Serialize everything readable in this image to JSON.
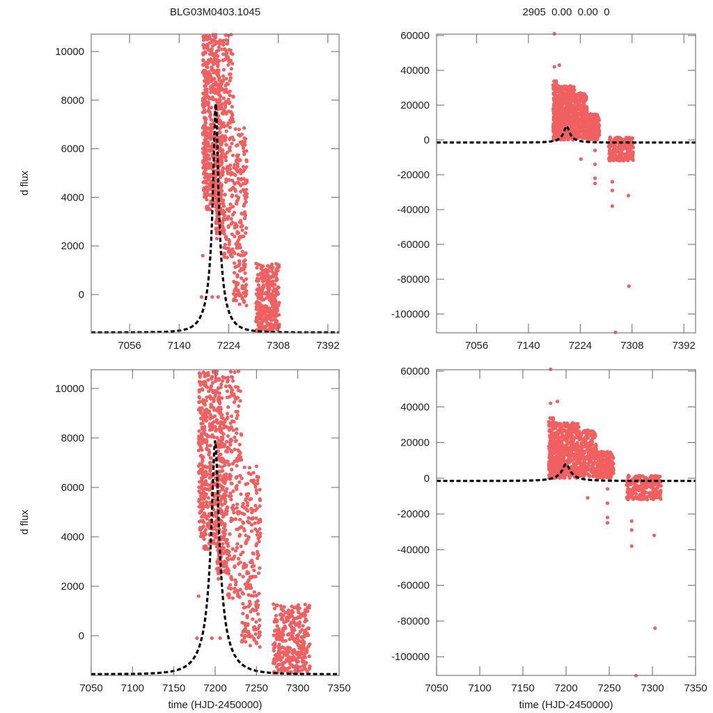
{
  "figure": {
    "title_left": "BLG03M0403.1045",
    "title_right": "2905  0.00  0.00  0",
    "point_color": "#f06060",
    "model_color": "#000000"
  },
  "chart_data": [
    {
      "id": "top-left",
      "type": "scatter",
      "title": "BLG03M0403.1045",
      "xlabel": "",
      "ylabel": "d flux",
      "xlim": [
        6991,
        7411
      ],
      "ylim": [
        -1576,
        10716
      ],
      "xticks": [
        7056,
        7140,
        7224,
        7308,
        7392
      ],
      "xtick_labels": [
        "7056",
        "7140",
        "7224",
        "7308",
        "7392"
      ],
      "yticks": [
        0,
        2000,
        4000,
        6000,
        8000,
        10000
      ],
      "ytick_labels": [
        "0",
        "2000",
        "4000",
        "6000",
        "8000",
        "10000"
      ],
      "model": {
        "label": "model",
        "t0": 7202,
        "peak": 7900,
        "baseline": -1560,
        "u0": 0.15,
        "tE": 28
      },
      "clusters": [
        {
          "x_range": [
            7180,
            7186
          ],
          "y_range": [
            4000,
            10700
          ],
          "n": 130
        },
        {
          "x_range": [
            7186,
            7202
          ],
          "y_range": [
            3500,
            10700
          ],
          "n": 260
        },
        {
          "x_range": [
            7202,
            7215
          ],
          "y_range": [
            2500,
            10500
          ],
          "n": 260
        },
        {
          "x_range": [
            7215,
            7232
          ],
          "y_range": [
            1500,
            10700
          ],
          "n": 170
        },
        {
          "x_range": [
            7232,
            7255
          ],
          "y_range": [
            -500,
            7000
          ],
          "n": 200
        },
        {
          "x_range": [
            7270,
            7310
          ],
          "y_range": [
            -1500,
            1300
          ],
          "n": 320
        }
      ],
      "outliers": [
        [
          7178,
          -100
        ],
        [
          7196,
          -100
        ],
        [
          7206,
          -100
        ],
        [
          7180,
          1600
        ],
        [
          7204,
          2300
        ],
        [
          7210,
          3500
        ],
        [
          7190,
          5300
        ]
      ]
    },
    {
      "id": "top-right",
      "type": "scatter",
      "title": "2905  0.00  0.00  0",
      "xlabel": "",
      "ylabel": "",
      "xlim": [
        6991,
        7411
      ],
      "ylim": [
        -110800,
        60800
      ],
      "xticks": [
        7056,
        7140,
        7224,
        7308,
        7392
      ],
      "xtick_labels": [
        "7056",
        "7140",
        "7224",
        "7308",
        "7392"
      ],
      "yticks": [
        -100000,
        -80000,
        -60000,
        -40000,
        -20000,
        0,
        20000,
        40000,
        60000
      ],
      "ytick_labels": [
        "-100000",
        "-80000",
        "-60000",
        "-40000",
        "-20000",
        "0",
        "20000",
        "40000",
        "60000"
      ],
      "model": {
        "label": "model",
        "t0": 7202,
        "peak": 8000,
        "baseline": -1500,
        "u0": 0.15,
        "tE": 28
      },
      "clusters": [
        {
          "x_range": [
            7180,
            7186
          ],
          "y_range": [
            0,
            34000
          ],
          "n": 150
        },
        {
          "x_range": [
            7186,
            7215
          ],
          "y_range": [
            0,
            31000
          ],
          "n": 450
        },
        {
          "x_range": [
            7215,
            7235
          ],
          "y_range": [
            1000,
            27000
          ],
          "n": 220
        },
        {
          "x_range": [
            7235,
            7255
          ],
          "y_range": [
            0,
            15000
          ],
          "n": 180
        },
        {
          "x_range": [
            7270,
            7310
          ],
          "y_range": [
            -12000,
            1500
          ],
          "n": 260
        }
      ],
      "outliers": [
        [
          7182,
          61000
        ],
        [
          7182,
          42000
        ],
        [
          7190,
          43000
        ],
        [
          7225,
          -11000
        ],
        [
          7248,
          -6000
        ],
        [
          7248,
          -14000
        ],
        [
          7248,
          -22000
        ],
        [
          7248,
          -25000
        ],
        [
          7276,
          -24000
        ],
        [
          7276,
          -29000
        ],
        [
          7276,
          -38000
        ],
        [
          7302,
          -32000
        ],
        [
          7303,
          -84000
        ],
        [
          7281,
          -110500
        ]
      ]
    },
    {
      "id": "bottom-left",
      "type": "scatter",
      "title": "",
      "xlabel": "time (HJD-2450000)",
      "ylabel": "d flux",
      "xlim": [
        7050,
        7350
      ],
      "ylim": [
        -1606,
        10760
      ],
      "xticks": [
        7050,
        7100,
        7150,
        7200,
        7250,
        7300,
        7350
      ],
      "xtick_labels": [
        "7050",
        "7100",
        "7150",
        "7200",
        "7250",
        "7300",
        "7350"
      ],
      "yticks": [
        0,
        2000,
        4000,
        6000,
        8000,
        10000
      ],
      "ytick_labels": [
        "0",
        "2000",
        "4000",
        "6000",
        "8000",
        "10000"
      ],
      "model": {
        "label": "model",
        "t0": 7200,
        "peak": 7900,
        "baseline": -1560,
        "u0": 0.15,
        "tE": 28
      },
      "clusters": [
        {
          "x_range": [
            7180,
            7186
          ],
          "y_range": [
            4000,
            10700
          ],
          "n": 130
        },
        {
          "x_range": [
            7186,
            7202
          ],
          "y_range": [
            3500,
            10700
          ],
          "n": 260
        },
        {
          "x_range": [
            7202,
            7215
          ],
          "y_range": [
            2500,
            10500
          ],
          "n": 260
        },
        {
          "x_range": [
            7215,
            7232
          ],
          "y_range": [
            1500,
            10700
          ],
          "n": 170
        },
        {
          "x_range": [
            7232,
            7255
          ],
          "y_range": [
            -500,
            7000
          ],
          "n": 200
        },
        {
          "x_range": [
            7270,
            7315
          ],
          "y_range": [
            -1500,
            1300
          ],
          "n": 320
        }
      ],
      "outliers": [
        [
          7178,
          -100
        ],
        [
          7196,
          -100
        ],
        [
          7206,
          -100
        ],
        [
          7180,
          1600
        ],
        [
          7204,
          2300
        ],
        [
          7210,
          3500
        ],
        [
          7190,
          5300
        ]
      ]
    },
    {
      "id": "bottom-right",
      "type": "scatter",
      "title": "",
      "xlabel": "time (HJD-2450000)",
      "ylabel": "",
      "xlim": [
        7050,
        7350
      ],
      "ylim": [
        -110440,
        60780
      ],
      "xticks": [
        7050,
        7100,
        7150,
        7200,
        7250,
        7300,
        7350
      ],
      "xtick_labels": [
        "7050",
        "7100",
        "7150",
        "7200",
        "7250",
        "7300",
        "7350"
      ],
      "yticks": [
        -100000,
        -80000,
        -60000,
        -40000,
        -20000,
        0,
        20000,
        40000,
        60000
      ],
      "ytick_labels": [
        "-100000",
        "-80000",
        "-60000",
        "-40000",
        "-20000",
        "0",
        "20000",
        "40000",
        "60000"
      ],
      "model": {
        "label": "model",
        "t0": 7200,
        "peak": 8000,
        "baseline": -1500,
        "u0": 0.15,
        "tE": 28
      },
      "clusters": [
        {
          "x_range": [
            7180,
            7186
          ],
          "y_range": [
            0,
            34000
          ],
          "n": 150
        },
        {
          "x_range": [
            7186,
            7215
          ],
          "y_range": [
            0,
            31000
          ],
          "n": 450
        },
        {
          "x_range": [
            7215,
            7235
          ],
          "y_range": [
            1000,
            27000
          ],
          "n": 220
        },
        {
          "x_range": [
            7235,
            7255
          ],
          "y_range": [
            0,
            15000
          ],
          "n": 180
        },
        {
          "x_range": [
            7270,
            7310
          ],
          "y_range": [
            -12000,
            1500
          ],
          "n": 260
        }
      ],
      "outliers": [
        [
          7182,
          61000
        ],
        [
          7182,
          42000
        ],
        [
          7190,
          43000
        ],
        [
          7225,
          -11000
        ],
        [
          7248,
          -6000
        ],
        [
          7248,
          -14000
        ],
        [
          7248,
          -22000
        ],
        [
          7248,
          -25000
        ],
        [
          7276,
          -24000
        ],
        [
          7276,
          -29000
        ],
        [
          7276,
          -38000
        ],
        [
          7302,
          -32000
        ],
        [
          7303,
          -84000
        ],
        [
          7281,
          -110500
        ]
      ]
    }
  ]
}
